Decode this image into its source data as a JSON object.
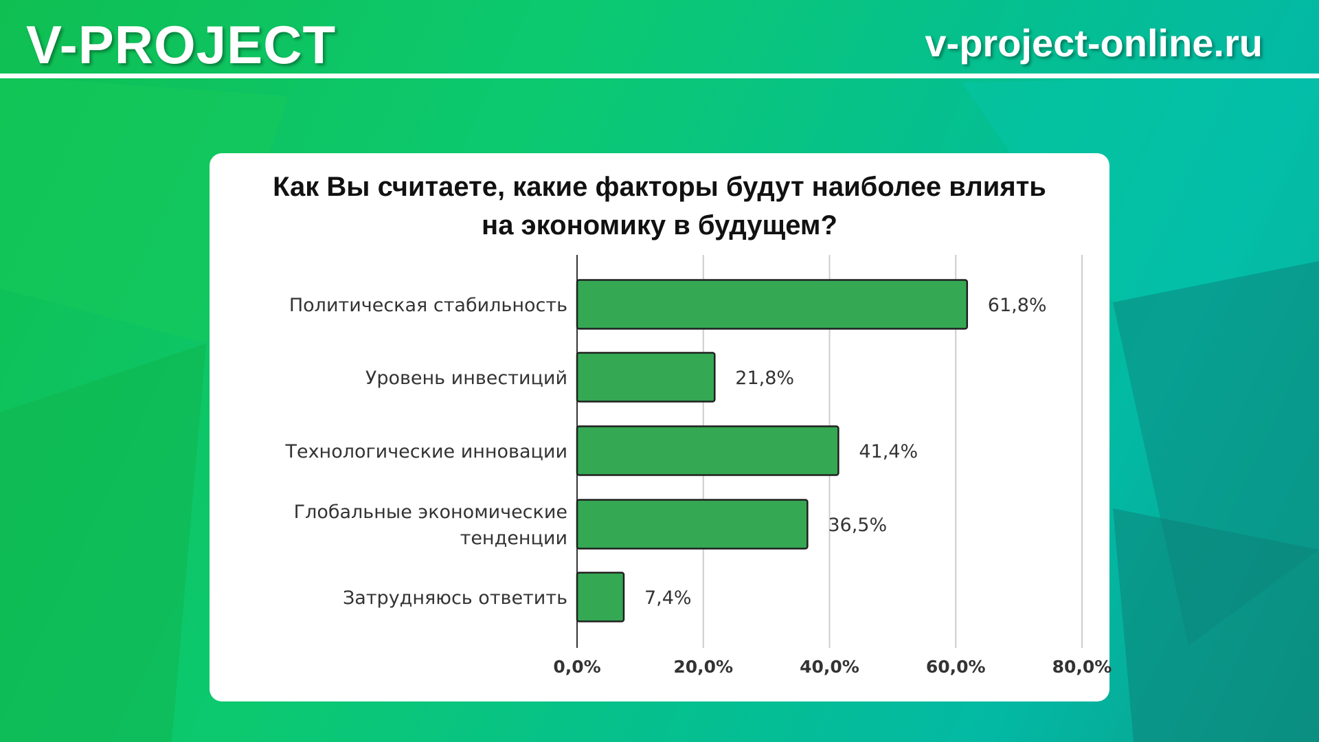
{
  "header": {
    "brand": "V-PROJECT",
    "site": "v-project-online.ru"
  },
  "colors": {
    "bar": "#35a853",
    "bar_stroke": "#1f1f1f",
    "grid": "#cccccc"
  },
  "chart_data": {
    "type": "bar",
    "orientation": "horizontal",
    "title": "Как Вы считаете, какие факторы будут наиболее влиять на экономику в будущем?",
    "title_lines": [
      "Как Вы считаете, какие факторы будут наиболее влиять",
      "на экономику в будущем?"
    ],
    "categories": [
      "Политическая стабильность",
      "Уровень инвестиций",
      "Технологические инновации",
      "Глобальные экономические тенденции",
      "Затрудняюсь ответить"
    ],
    "category_lines": [
      [
        "Политическая стабильность"
      ],
      [
        "Уровень инвестиций"
      ],
      [
        "Технологические инновации"
      ],
      [
        "Глобальные экономические",
        "тенденции"
      ],
      [
        "Затрудняюсь ответить"
      ]
    ],
    "values": [
      61.8,
      21.8,
      41.4,
      36.5,
      7.4
    ],
    "value_labels": [
      "61,8%",
      "21,8%",
      "41,4%",
      "36,5%",
      "7,4%"
    ],
    "xlim": [
      0,
      80
    ],
    "xticks": [
      0,
      20,
      40,
      60,
      80
    ],
    "xtick_labels": [
      "0,0%",
      "20,0%",
      "40,0%",
      "60,0%",
      "80,0%"
    ],
    "grid": true,
    "legend": "none"
  }
}
